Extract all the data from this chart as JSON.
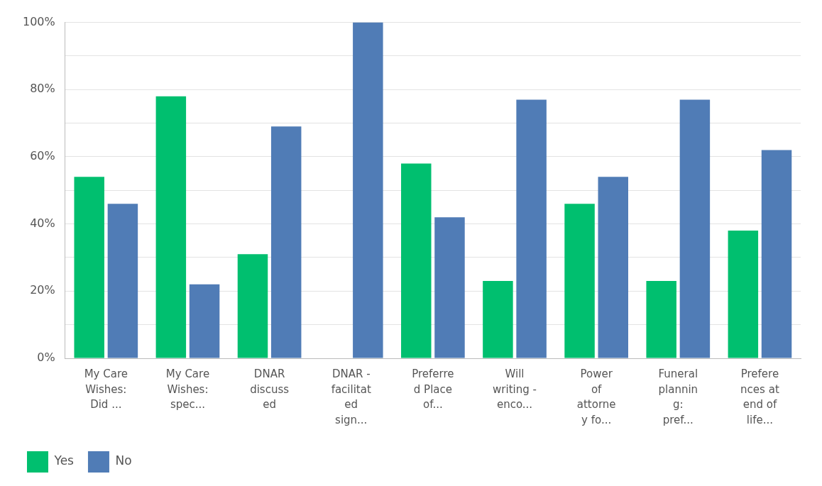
{
  "chart_data": {
    "type": "bar",
    "categories": [
      "My Care Wishes: Did ...",
      "My Care Wishes: spec...",
      "DNAR discussed",
      "DNAR - facilitated sign...",
      "Preferred Place of...",
      "Will writing - enco...",
      "Power of attorney fo...",
      "Funeral planning: pref...",
      "Preferences at end of life..."
    ],
    "series": [
      {
        "name": "Yes",
        "color": "#00bf6f",
        "values": [
          54,
          78,
          31,
          0,
          58,
          23,
          46,
          23,
          38
        ]
      },
      {
        "name": "No",
        "color": "#507cb6",
        "values": [
          46,
          22,
          69,
          100,
          42,
          77,
          54,
          77,
          62
        ]
      }
    ],
    "ylim": [
      0,
      100
    ],
    "yticks": [
      {
        "value": 0,
        "label": "0%"
      },
      {
        "value": 10,
        "label": null
      },
      {
        "value": 20,
        "label": "20%"
      },
      {
        "value": 30,
        "label": null
      },
      {
        "value": 40,
        "label": "40%"
      },
      {
        "value": 50,
        "label": null
      },
      {
        "value": 60,
        "label": "60%"
      },
      {
        "value": 70,
        "label": null
      },
      {
        "value": 80,
        "label": "80%"
      },
      {
        "value": 90,
        "label": null
      },
      {
        "value": 100,
        "label": "100%"
      }
    ],
    "grid": "y",
    "legend": "bottom left"
  }
}
